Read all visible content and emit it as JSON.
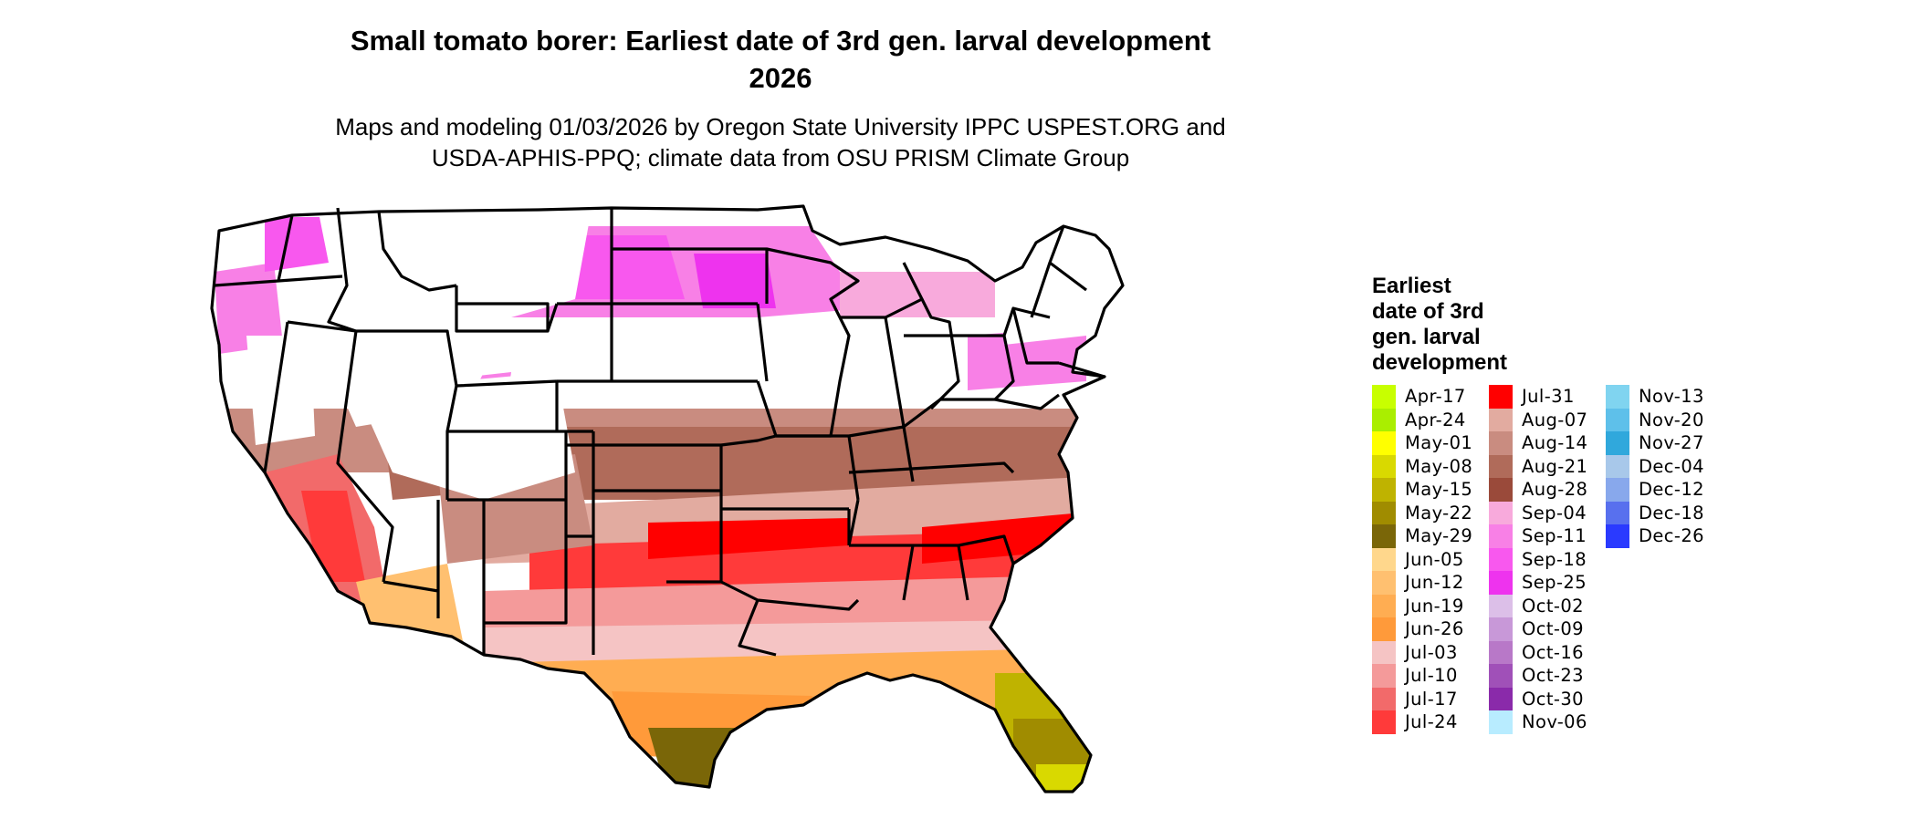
{
  "title_line1": "Small tomato borer: Earliest date of 3rd gen. larval development",
  "title_line2": "2026",
  "subtitle_line1": "Maps and modeling 01/03/2026 by Oregon State University IPPC USPEST.ORG and",
  "subtitle_line2": "USDA-APHIS-PPQ; climate data from OSU PRISM Climate Group",
  "legend": {
    "title_lines": [
      "Earliest",
      "date of 3rd",
      "gen. larval",
      "development"
    ],
    "columns": [
      [
        {
          "label": "Apr-17",
          "color": "#c8ff00"
        },
        {
          "label": "Apr-24",
          "color": "#aaee00"
        },
        {
          "label": "May-01",
          "color": "#ffff00"
        },
        {
          "label": "May-08",
          "color": "#d9d900"
        },
        {
          "label": "May-15",
          "color": "#bfb300"
        },
        {
          "label": "May-22",
          "color": "#a08c00"
        },
        {
          "label": "May-29",
          "color": "#7a6608"
        },
        {
          "label": "Jun-05",
          "color": "#ffd78c"
        },
        {
          "label": "Jun-12",
          "color": "#ffc070"
        },
        {
          "label": "Jun-19",
          "color": "#ffad52"
        },
        {
          "label": "Jun-26",
          "color": "#ff9a3a"
        },
        {
          "label": "Jul-03",
          "color": "#f5c4c4"
        },
        {
          "label": "Jul-10",
          "color": "#f49a9a"
        },
        {
          "label": "Jul-17",
          "color": "#f26a6a"
        },
        {
          "label": "Jul-24",
          "color": "#ff3a3a"
        }
      ],
      [
        {
          "label": "Jul-31",
          "color": "#ff0000"
        },
        {
          "label": "Aug-07",
          "color": "#e2aba0"
        },
        {
          "label": "Aug-14",
          "color": "#c98c80"
        },
        {
          "label": "Aug-21",
          "color": "#b06b5a"
        },
        {
          "label": "Aug-28",
          "color": "#9a4a3a"
        },
        {
          "label": "Sep-04",
          "color": "#f8aadc"
        },
        {
          "label": "Sep-11",
          "color": "#f880e6"
        },
        {
          "label": "Sep-18",
          "color": "#f858ee"
        },
        {
          "label": "Sep-25",
          "color": "#ee33ee"
        },
        {
          "label": "Oct-02",
          "color": "#dcbfe8"
        },
        {
          "label": "Oct-09",
          "color": "#c898d8"
        },
        {
          "label": "Oct-16",
          "color": "#b878c8"
        },
        {
          "label": "Oct-23",
          "color": "#a050b8"
        },
        {
          "label": "Oct-30",
          "color": "#8a2aaa"
        },
        {
          "label": "Nov-06",
          "color": "#b8ecff"
        }
      ],
      [
        {
          "label": "Nov-13",
          "color": "#80d4f0"
        },
        {
          "label": "Nov-20",
          "color": "#5ec0ea"
        },
        {
          "label": "Nov-27",
          "color": "#30a8dc"
        },
        {
          "label": "Dec-04",
          "color": "#a8c8ea"
        },
        {
          "label": "Dec-12",
          "color": "#88a8ec"
        },
        {
          "label": "Dec-18",
          "color": "#5870ee"
        },
        {
          "label": "Dec-26",
          "color": "#2a3aff"
        }
      ]
    ]
  }
}
